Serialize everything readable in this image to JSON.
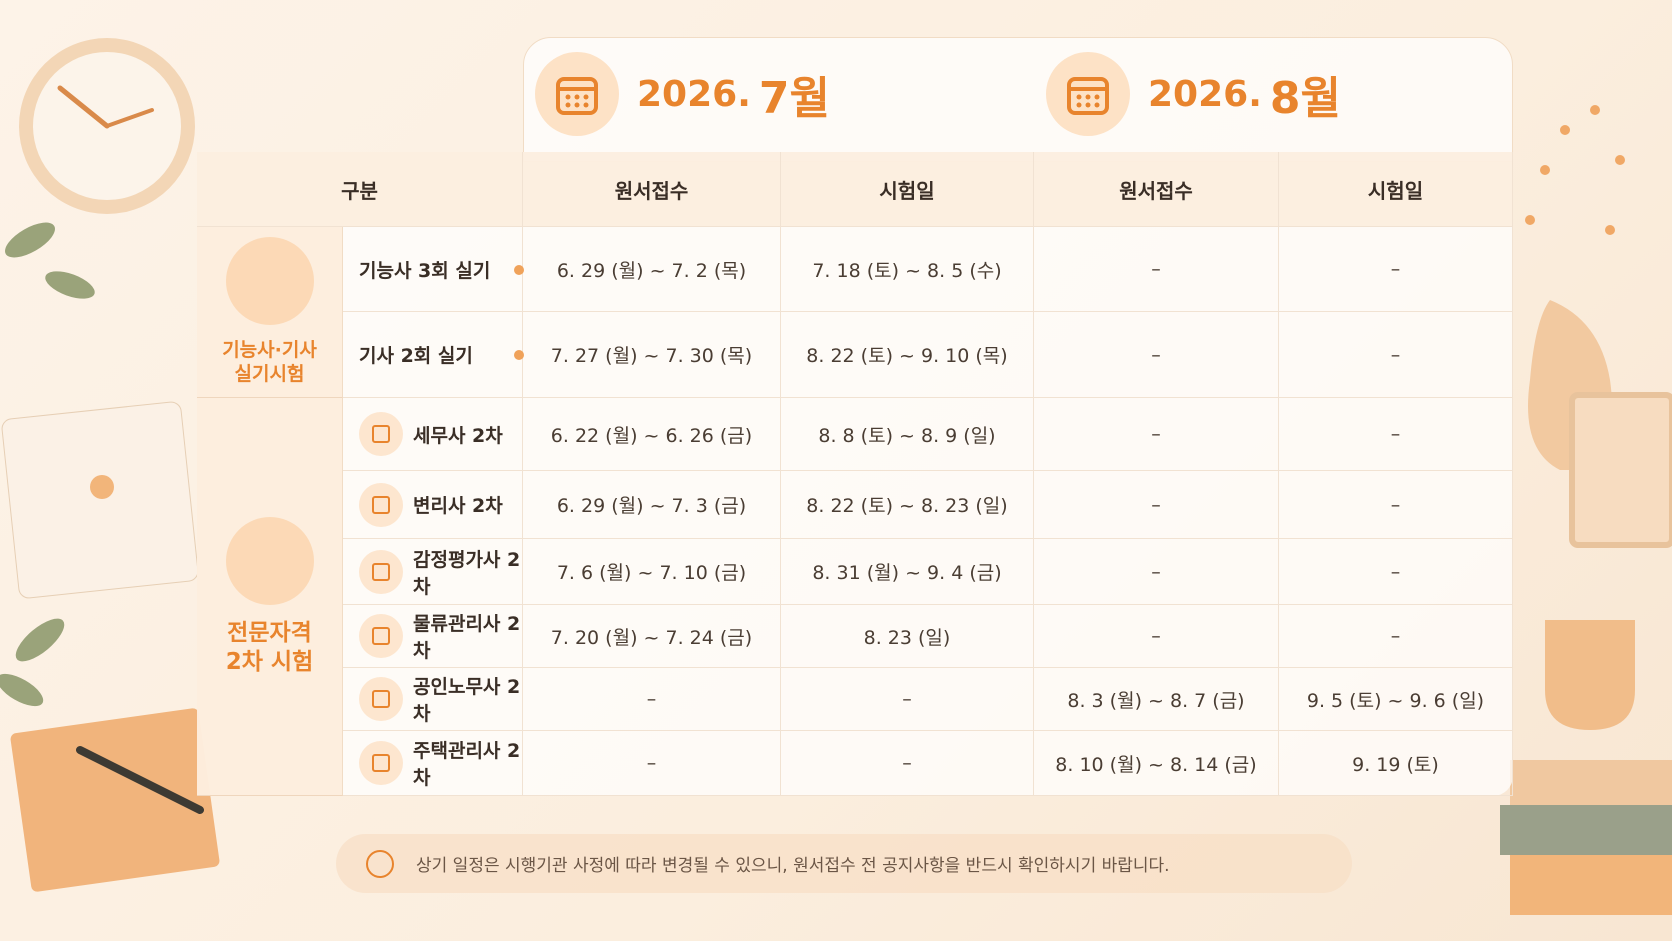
{
  "months": [
    {
      "year": "2026.",
      "month": "7월"
    },
    {
      "year": "2026.",
      "month": "8월"
    }
  ],
  "header": [
    "구분",
    "원서접수",
    "시험일",
    "원서접수",
    "시험일"
  ],
  "groups": [
    {
      "label": [
        "기능사·기사",
        "실기시험"
      ],
      "rows": [
        [
          "기능사 3회 실기",
          "6. 29 (월) ~ 7. 2 (목)",
          "7. 18 (토) ~ 8. 5 (수)",
          "–",
          "–"
        ],
        [
          "기사 2회 실기",
          "7. 27 (월) ~ 7. 30 (목)",
          "8. 22 (토) ~ 9. 10 (목)",
          "–",
          "–"
        ]
      ]
    },
    {
      "label": [
        "전문자격",
        "2차 시험"
      ],
      "rows": [
        [
          "세무사 2차",
          "6. 22 (월) ~ 6. 26 (금)",
          "8. 8 (토) ~ 8. 9 (일)",
          "–",
          "–"
        ],
        [
          "변리사 2차",
          "6. 29 (월) ~ 7. 3 (금)",
          "8. 22 (토) ~ 8. 23 (일)",
          "–",
          "–"
        ],
        [
          "감정평가사 2차",
          "7. 6 (월) ~ 7. 10 (금)",
          "8. 31 (월) ~ 9. 4 (금)",
          "–",
          "–"
        ],
        [
          "물류관리사 2차",
          "7. 20 (월) ~ 7. 24 (금)",
          "8. 23 (일)",
          "–",
          "–"
        ],
        [
          "공인노무사 2차",
          "–",
          "–",
          "8. 3 (월) ~ 8. 7 (금)",
          "9. 5 (토) ~ 9. 6 (일)"
        ],
        [
          "주택관리사 2차",
          "–",
          "–",
          "8. 10 (월) ~ 8. 14 (금)",
          "9. 19 (토)"
        ]
      ]
    }
  ],
  "notice": "상기 일정은 시행기관 사정에 따라 변경될 수 있으니, 원서접수 전 공지사항을 반드시 확인하시기 바랍니다."
}
